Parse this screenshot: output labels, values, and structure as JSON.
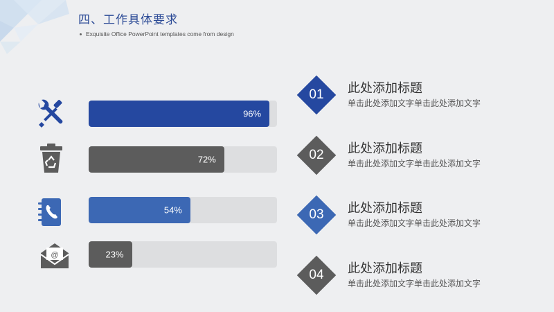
{
  "header": {
    "title": "四、工作具体要求",
    "subtitle": "Exquisite Office PowerPoint templates come from  design"
  },
  "colors": {
    "blue_dark": "#2548a0",
    "blue_light": "#3c68b4",
    "gray_dark": "#5c5c5c",
    "track": "#dddee0"
  },
  "skills": [
    {
      "icon": "tools-icon",
      "percent": 96,
      "value_label": "96%",
      "color": "#2548a0"
    },
    {
      "icon": "recycle-bin-icon",
      "percent": 72,
      "value_label": "72%",
      "color": "#5c5c5c"
    },
    {
      "icon": "phone-book-icon",
      "percent": 54,
      "value_label": "54%",
      "color": "#3c68b4"
    },
    {
      "icon": "email-envelope-icon",
      "percent": 23,
      "value_label": "23%",
      "color": "#5c5c5c"
    }
  ],
  "steps": [
    {
      "number": "01",
      "title": "此处添加标题",
      "desc": "单击此处添加文字单击此处添加文字",
      "color": "#2548a0"
    },
    {
      "number": "02",
      "title": "此处添加标题",
      "desc": "单击此处添加文字单击此处添加文字",
      "color": "#5c5c5c"
    },
    {
      "number": "03",
      "title": "此处添加标题",
      "desc": "单击此处添加文字单击此处添加文字",
      "color": "#3c68b4"
    },
    {
      "number": "04",
      "title": "此处添加标题",
      "desc": "单击此处添加文字单击此处添加文字",
      "color": "#5c5c5c"
    }
  ]
}
